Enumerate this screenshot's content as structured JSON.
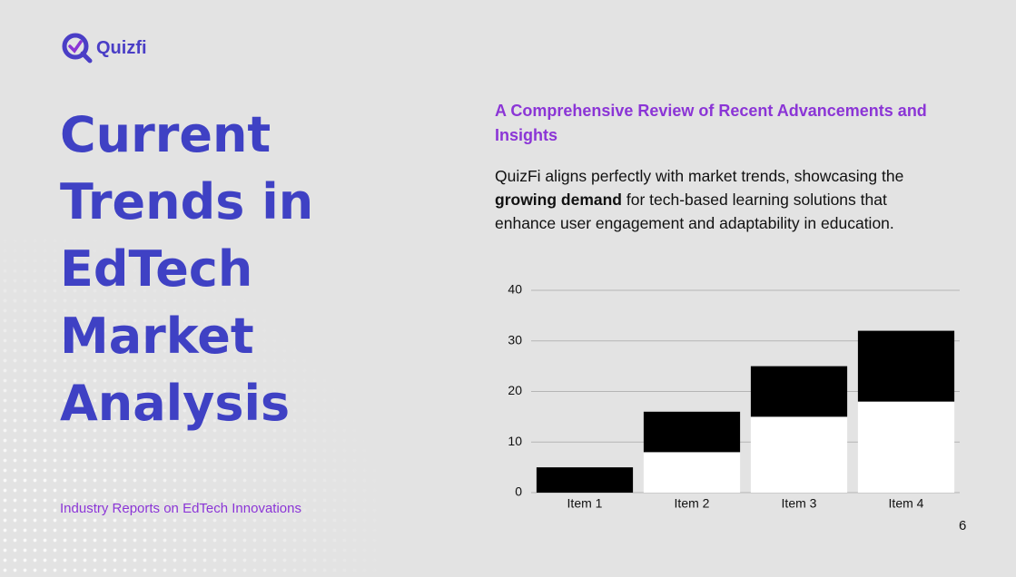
{
  "logo": {
    "text": "Quizfi"
  },
  "title_lines": [
    "Current",
    "Trends in",
    "EdTech",
    "Market",
    "Analysis"
  ],
  "subtitle": "Industry Reports on EdTech Innovations",
  "heading": "A Comprehensive Review of Recent Advancements and Insights",
  "body": {
    "before": "QuizFi aligns perfectly with market trends, showcasing the ",
    "bold": "growing demand",
    "after": " for tech-based learning solutions that enhance user engagement and adaptability in education."
  },
  "page_number": 6,
  "chart_data": {
    "type": "stacked_bar",
    "categories": [
      "Item 1",
      "Item 2",
      "Item 3",
      "Item 4"
    ],
    "series": [
      {
        "color": "#ffffff",
        "values": [
          0,
          8,
          15,
          18
        ]
      },
      {
        "color": "#000000",
        "values": [
          5,
          8,
          10,
          14
        ]
      }
    ],
    "ylim": [
      0,
      40
    ],
    "yticks": [
      0,
      10,
      20,
      30,
      40
    ],
    "grid": true
  }
}
